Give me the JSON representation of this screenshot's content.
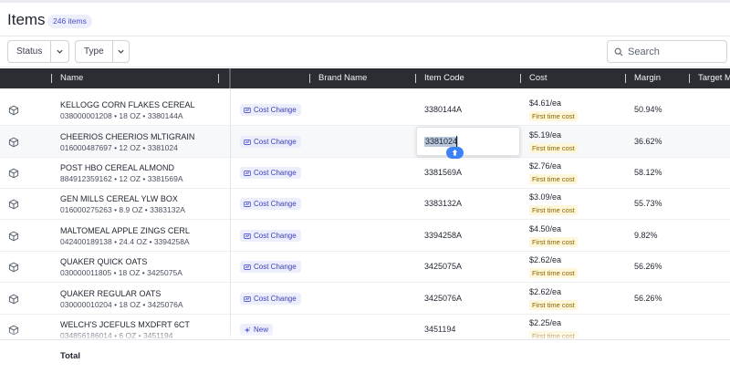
{
  "header": {
    "title": "Items",
    "count_badge": "246 items"
  },
  "filters": {
    "status": {
      "label": "Status",
      "icon": "chevron-down-icon"
    },
    "type": {
      "label": "Type",
      "icon": "chevron-down-icon"
    }
  },
  "search": {
    "placeholder": "Search",
    "value": "",
    "icon": "search-icon"
  },
  "columns": [
    "Name",
    "Brand Name",
    "Item Code",
    "Cost",
    "Margin",
    "Target M..."
  ],
  "rows": [
    {
      "name": "KELLOGG CORN FLAKES CEREAL",
      "meta": "038000001208 • 18 OZ • 3380144A",
      "tag": "Cost Change",
      "item_code": "3380144A",
      "cost": "$4.61/ea",
      "cost_note": "First time cost",
      "margin": "50.94%"
    },
    {
      "name": "CHEERIOS CHEERIOS MLTIGRAIN",
      "meta": "016000487697 • 12 OZ • 3381024",
      "tag": "Cost Change",
      "item_code": "3381024",
      "cost": "$5.19/ea",
      "cost_note": "First time cost",
      "margin": "36.62%"
    },
    {
      "name": "POST HBO CEREAL ALMOND",
      "meta": "884912359162 • 12 OZ • 3381569A",
      "tag": "Cost Change",
      "item_code": "3381569A",
      "cost": "$2.76/ea",
      "cost_note": "First time cost",
      "margin": "58.12%"
    },
    {
      "name": "GEN MILLS CEREAL YLW BOX",
      "meta": "016000275263 • 8.9 OZ • 3383132A",
      "tag": "Cost Change",
      "item_code": "3383132A",
      "cost": "$3.09/ea",
      "cost_note": "First time cost",
      "margin": "55.73%"
    },
    {
      "name": "MALTOMEAL APPLE ZINGS CERL",
      "meta": "042400189138 • 24.4 OZ • 3394258A",
      "tag": "Cost Change",
      "item_code": "3394258A",
      "cost": "$4.50/ea",
      "cost_note": "First time cost",
      "margin": "9.82%"
    },
    {
      "name": "QUAKER QUICK OATS",
      "meta": "030000011805 • 18 OZ • 3425075A",
      "tag": "Cost Change",
      "item_code": "3425075A",
      "cost": "$2.62/ea",
      "cost_note": "First time cost",
      "margin": "56.26%"
    },
    {
      "name": "QUAKER REGULAR OATS",
      "meta": "030000010204 • 18 OZ • 3425076A",
      "tag": "Cost Change",
      "item_code": "3425076A",
      "cost": "$2.62/ea",
      "cost_note": "First time cost",
      "margin": "56.26%"
    },
    {
      "name": "WELCH'S JCEFULS MXDFRT 6CT",
      "meta": "034856186014 • 6 OZ • 3451194",
      "tag": "New",
      "item_code": "3451194",
      "cost": "$2.25/ea",
      "cost_note": "First time cost",
      "margin": ""
    }
  ],
  "editing_cell": {
    "value": "3381024"
  },
  "total_row": {
    "label": "Total"
  },
  "colors": {
    "accent": "#4b4fd1",
    "tag_bg": "#eceefc",
    "header_bg": "#2b2d33",
    "cost_note_bg": "#fdf6d9",
    "drag_handle": "#3b82f6"
  }
}
